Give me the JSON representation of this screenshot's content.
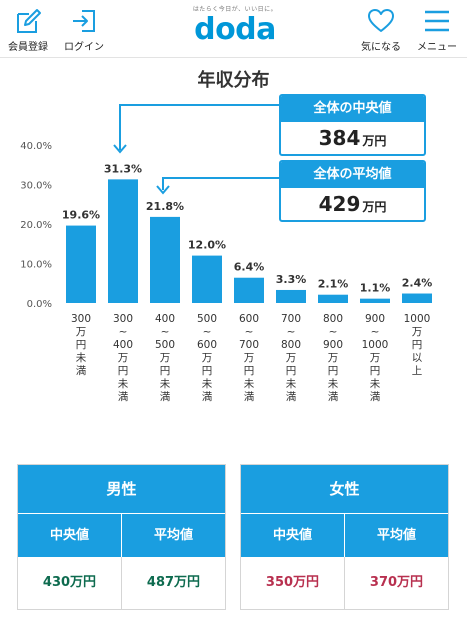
{
  "header": {
    "register_label": "会員登録",
    "login_label": "ログイン",
    "tagline": "はたらく今日が、いい日に。",
    "logo_text": "doda",
    "favorite_label": "気になる",
    "menu_label": "メニュー",
    "icons": {
      "register": "pen-square-icon",
      "login": "login-arrow-icon",
      "favorite": "heart-icon",
      "menu": "hamburger-icon"
    }
  },
  "chart_title": "年収分布",
  "chart_data": {
    "type": "bar",
    "title": "年収分布",
    "categories": [
      "300万円未満",
      "300~400万円未満",
      "400~500万円未満",
      "500~600万円未満",
      "600~700万円未満",
      "700~800万円未満",
      "800~900万円未満",
      "900~1000万円未満",
      "1000万円以上"
    ],
    "category_lines": [
      [
        "300",
        "万",
        "円",
        "未",
        "満"
      ],
      [
        "300",
        "~",
        "400",
        "万",
        "円",
        "未",
        "満"
      ],
      [
        "400",
        "~",
        "500",
        "万",
        "円",
        "未",
        "満"
      ],
      [
        "500",
        "~",
        "600",
        "万",
        "円",
        "未",
        "満"
      ],
      [
        "600",
        "~",
        "700",
        "万",
        "円",
        "未",
        "満"
      ],
      [
        "700",
        "~",
        "800",
        "万",
        "円",
        "未",
        "満"
      ],
      [
        "800",
        "~",
        "900",
        "万",
        "円",
        "未",
        "満"
      ],
      [
        "900",
        "~",
        "1000",
        "万",
        "円",
        "未",
        "満"
      ],
      [
        "1000",
        "万",
        "円",
        "以",
        "上"
      ]
    ],
    "values": [
      19.6,
      31.3,
      21.8,
      12.0,
      6.4,
      3.3,
      2.1,
      1.1,
      2.4
    ],
    "value_labels": [
      "19.6%",
      "31.3%",
      "21.8%",
      "12.0%",
      "6.4%",
      "3.3%",
      "2.1%",
      "1.1%",
      "2.4%"
    ],
    "yticks": [
      "0.0%",
      "10.0%",
      "20.0%",
      "30.0%",
      "40.0%"
    ],
    "ylim": [
      0,
      40
    ],
    "grid": false,
    "bar_color": "#1a9ee0"
  },
  "median_callout": {
    "label": "全体の中央値",
    "value": "384",
    "unit": "万円"
  },
  "average_callout": {
    "label": "全体の平均値",
    "value": "429",
    "unit": "万円"
  },
  "male": {
    "title": "男性",
    "median_label": "中央値",
    "average_label": "平均値",
    "median_value": "430万円",
    "average_value": "487万円",
    "value_color": "#0e6b4f"
  },
  "female": {
    "title": "女性",
    "median_label": "中央値",
    "average_label": "平均値",
    "median_value": "350万円",
    "average_value": "370万円",
    "value_color": "#b8304f"
  },
  "accent_color": "#1a9ee0"
}
